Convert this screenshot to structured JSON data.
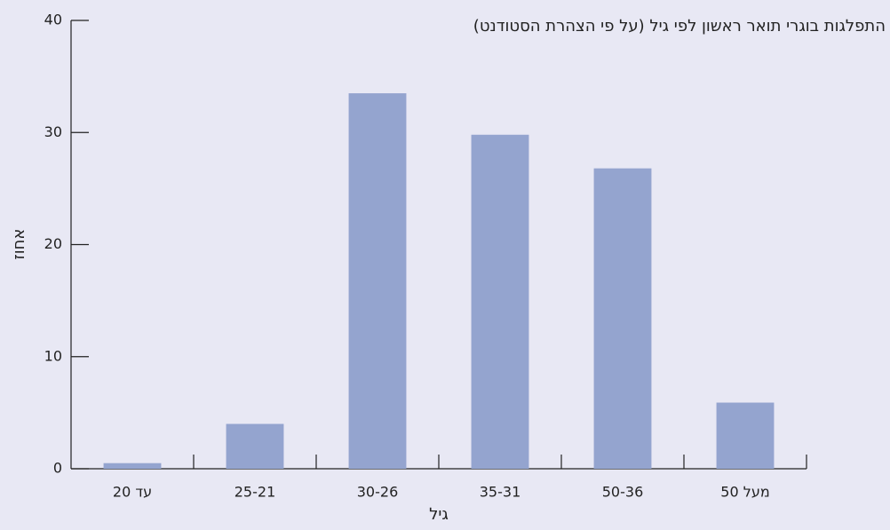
{
  "chart_data": {
    "type": "bar",
    "title": "התפלגות בוגרי תואר ראשון לפי גיל (על פי הצהרת הסטודנט)",
    "x_label": "גיל",
    "y_label": "אחוז",
    "categories": [
      "עד 20",
      "25-21",
      "30-26",
      "35-31",
      "50-36",
      "מעל 50"
    ],
    "values": [
      0.5,
      4.0,
      33.5,
      29.8,
      26.8,
      5.9
    ],
    "color": "#94a4cf",
    "ylim": [
      0,
      40
    ],
    "yticks": [
      0,
      10,
      20,
      30,
      40
    ],
    "grid": false
  }
}
